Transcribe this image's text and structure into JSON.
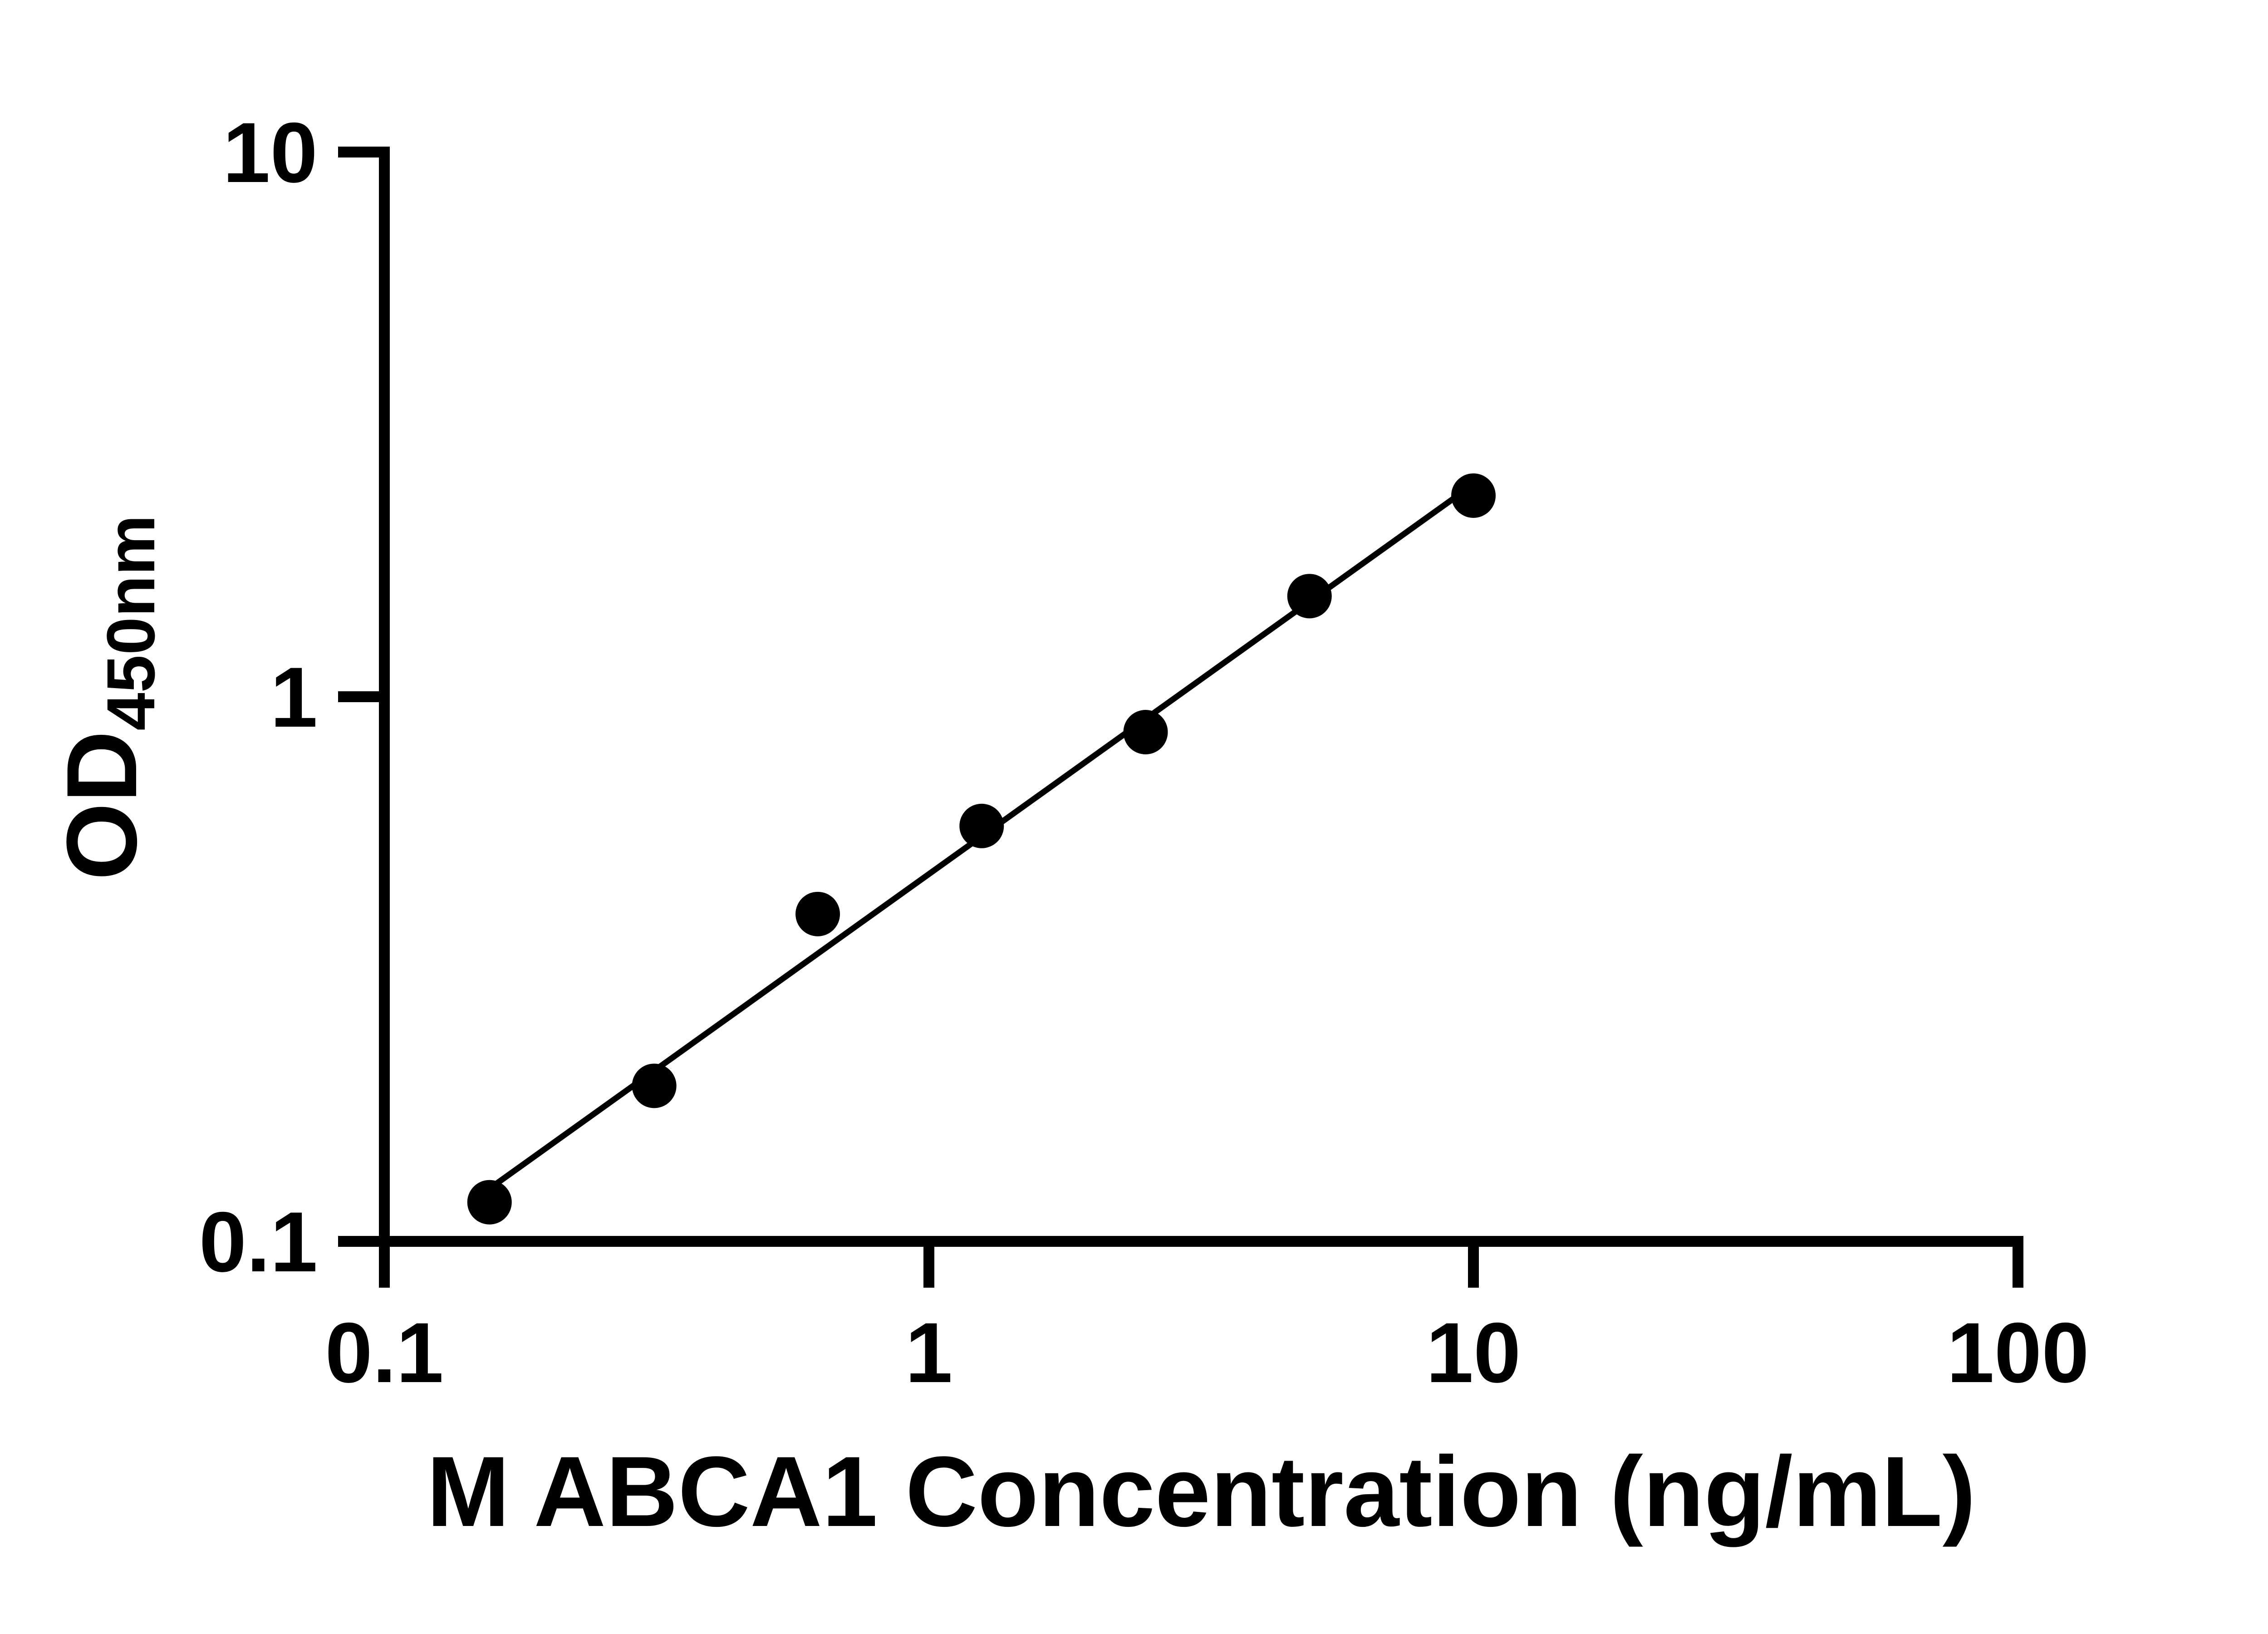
{
  "figure": {
    "background_color": "#ffffff",
    "ink_color": "#000000"
  },
  "chart_data": {
    "type": "scatter",
    "title": "",
    "xlabel": "M ABCA1 Concentration (ng/mL)",
    "ylabel_main": "OD",
    "ylabel_sub": "450nm",
    "x_scale": "log",
    "y_scale": "log",
    "xlim": [
      0.1,
      100
    ],
    "ylim": [
      0.1,
      10
    ],
    "grid": false,
    "legend_position": "none",
    "x_ticks": [
      {
        "value": 0.1,
        "label": "0.1"
      },
      {
        "value": 1,
        "label": "1"
      },
      {
        "value": 10,
        "label": "10"
      },
      {
        "value": 100,
        "label": "100"
      }
    ],
    "y_ticks": [
      {
        "value": 0.1,
        "label": "0.1"
      },
      {
        "value": 1,
        "label": "1"
      },
      {
        "value": 10,
        "label": "10"
      }
    ],
    "series": [
      {
        "name": "standard-curve",
        "marker": "filled-circle",
        "marker_color": "#000000",
        "x_name": "concentration_ng_per_mL",
        "y_name": "OD450",
        "points": [
          {
            "x": 0.156,
            "y": 0.118
          },
          {
            "x": 0.313,
            "y": 0.193
          },
          {
            "x": 0.625,
            "y": 0.399
          },
          {
            "x": 1.25,
            "y": 0.579
          },
          {
            "x": 2.5,
            "y": 0.861
          },
          {
            "x": 5,
            "y": 1.53
          },
          {
            "x": 10,
            "y": 2.34
          }
        ]
      }
    ],
    "trend_line": {
      "x1": 0.156,
      "y1": 0.125,
      "x2": 10,
      "y2": 2.455
    }
  }
}
